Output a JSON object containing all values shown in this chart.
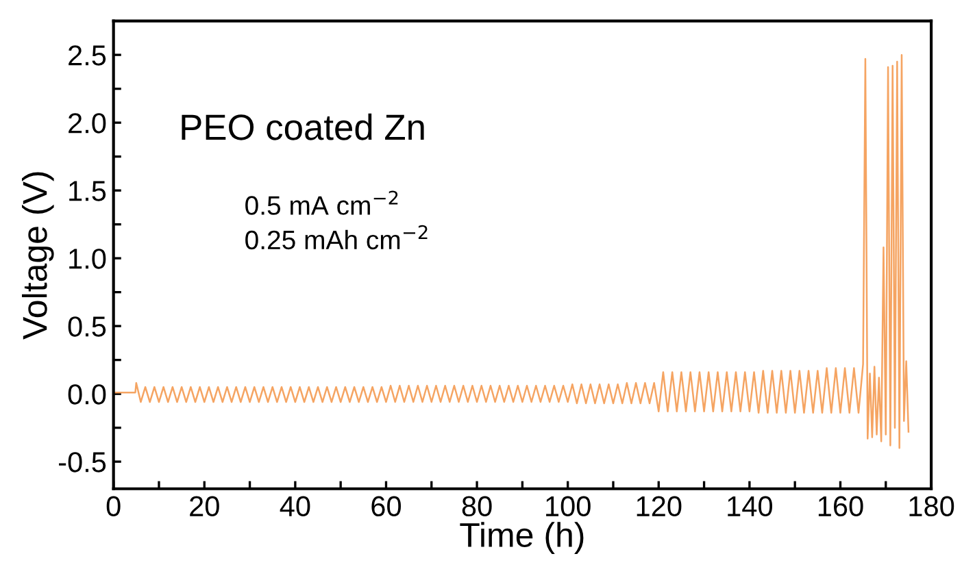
{
  "chart_data": {
    "type": "line",
    "xlabel": "Time (h)",
    "ylabel": "Voltage (V)",
    "annotations": [
      "PEO coated Zn",
      "0.5 mA cm$^{−2}$\n0.25 mAh cm$^{−2}$"
    ],
    "xlim": [
      0,
      180
    ],
    "ylim": [
      -0.7,
      2.75
    ],
    "xticks": [
      0,
      {
        "value": 10,
        "label": null
      },
      20,
      {
        "value": 30,
        "label": null
      },
      40,
      {
        "value": 50,
        "label": null
      },
      60,
      {
        "value": 70,
        "label": null
      },
      80,
      {
        "value": 90,
        "label": null
      },
      100,
      {
        "value": 110,
        "label": null
      },
      120,
      {
        "value": 130,
        "label": null
      },
      140,
      {
        "value": 150,
        "label": null
      },
      160,
      {
        "value": 170,
        "label": null
      },
      180
    ],
    "yticks": [
      -0.5,
      {
        "value": -0.25,
        "label": null
      },
      {
        "value": 0,
        "label": "0.0"
      },
      {
        "value": 0.25,
        "label": null
      },
      0.5,
      {
        "value": 0.75,
        "label": null
      },
      {
        "value": 1,
        "label": "1.0"
      },
      {
        "value": 1.25,
        "label": null
      },
      1.5,
      {
        "value": 1.75,
        "label": null
      },
      {
        "value": 2,
        "label": "2.0"
      },
      {
        "value": 2.25,
        "label": null
      },
      2.5
    ],
    "grid": false,
    "marker": "none",
    "line_style": "solid",
    "series": [
      {
        "color": "#f5a462",
        "x": [
          0,
          4.8,
          5,
          6,
          7,
          8,
          9,
          10,
          11,
          12,
          13,
          14,
          15,
          16,
          17,
          18,
          19,
          20,
          21,
          22,
          23,
          24,
          25,
          26,
          27,
          28,
          29,
          30,
          31,
          32,
          33,
          34,
          35,
          36,
          37,
          38,
          39,
          40,
          41,
          42,
          43,
          44,
          45,
          46,
          47,
          48,
          49,
          50,
          51,
          52,
          53,
          54,
          55,
          56,
          57,
          58,
          59,
          60,
          61,
          62,
          63,
          64,
          65,
          66,
          67,
          68,
          69,
          70,
          71,
          72,
          73,
          74,
          75,
          76,
          77,
          78,
          79,
          80,
          81,
          82,
          83,
          84,
          85,
          86,
          87,
          88,
          89,
          90,
          91,
          92,
          93,
          94,
          95,
          96,
          97,
          98,
          99,
          100,
          101,
          102,
          103,
          104,
          105,
          106,
          107,
          108,
          109,
          110,
          111,
          112,
          113,
          114,
          115,
          116,
          117,
          118,
          119,
          120,
          121,
          122,
          123,
          124,
          125,
          126,
          127,
          128,
          129,
          130,
          131,
          132,
          133,
          134,
          135,
          136,
          137,
          138,
          139,
          140,
          141,
          142,
          143,
          144,
          145,
          146,
          147,
          148,
          149,
          150,
          151,
          152,
          153,
          154,
          155,
          156,
          157,
          158,
          159,
          160,
          161,
          162,
          163,
          164,
          165,
          165.5,
          166,
          166.5,
          167,
          167.5,
          168,
          168.5,
          169,
          169.5,
          170,
          170.5,
          171,
          171.5,
          172,
          172.5,
          173,
          173.5,
          174,
          174.5,
          175
        ],
        "values": [
          0.01,
          0.01,
          0.08,
          -0.06,
          0.05,
          -0.06,
          0.05,
          -0.06,
          0.05,
          -0.06,
          0.05,
          -0.06,
          0.05,
          -0.06,
          0.05,
          -0.06,
          0.05,
          -0.06,
          0.05,
          -0.06,
          0.05,
          -0.06,
          0.05,
          -0.06,
          0.05,
          -0.06,
          0.05,
          -0.06,
          0.05,
          -0.06,
          0.05,
          -0.06,
          0.05,
          -0.06,
          0.05,
          -0.06,
          0.05,
          -0.06,
          0.05,
          -0.06,
          0.05,
          -0.06,
          0.05,
          -0.06,
          0.05,
          -0.06,
          0.05,
          -0.06,
          0.05,
          -0.06,
          0.05,
          -0.06,
          0.05,
          -0.06,
          0.05,
          -0.06,
          0.05,
          -0.06,
          0.06,
          -0.06,
          0.06,
          -0.06,
          0.06,
          -0.06,
          0.06,
          -0.06,
          0.06,
          -0.06,
          0.06,
          -0.06,
          0.06,
          -0.06,
          0.06,
          -0.06,
          0.06,
          -0.06,
          0.06,
          -0.06,
          0.06,
          -0.06,
          0.06,
          -0.06,
          0.06,
          -0.06,
          0.06,
          -0.06,
          0.06,
          -0.06,
          0.06,
          -0.06,
          0.06,
          -0.06,
          0.06,
          -0.06,
          0.06,
          -0.06,
          0.06,
          -0.06,
          0.07,
          -0.07,
          0.07,
          -0.07,
          0.07,
          -0.07,
          0.07,
          -0.07,
          0.07,
          -0.07,
          0.07,
          -0.07,
          0.08,
          -0.07,
          0.08,
          -0.07,
          0.08,
          -0.07,
          0.08,
          -0.13,
          0.16,
          -0.13,
          0.16,
          -0.13,
          0.16,
          -0.13,
          0.16,
          -0.13,
          0.16,
          -0.13,
          0.16,
          -0.13,
          0.16,
          -0.13,
          0.16,
          -0.13,
          0.16,
          -0.13,
          0.16,
          -0.13,
          0.16,
          -0.14,
          0.17,
          -0.14,
          0.17,
          -0.14,
          0.17,
          -0.14,
          0.17,
          -0.14,
          0.17,
          -0.14,
          0.17,
          -0.14,
          0.17,
          -0.14,
          0.19,
          -0.14,
          0.19,
          -0.14,
          0.19,
          -0.14,
          0.19,
          -0.14,
          0.22,
          2.47,
          -0.33,
          0.15,
          -0.32,
          0.2,
          -0.3,
          0.12,
          -0.35,
          1.08,
          -0.3,
          2.41,
          -0.38,
          2.42,
          -0.25,
          2.45,
          -0.4,
          2.5,
          -0.2,
          0.24,
          -0.28
        ]
      }
    ]
  }
}
